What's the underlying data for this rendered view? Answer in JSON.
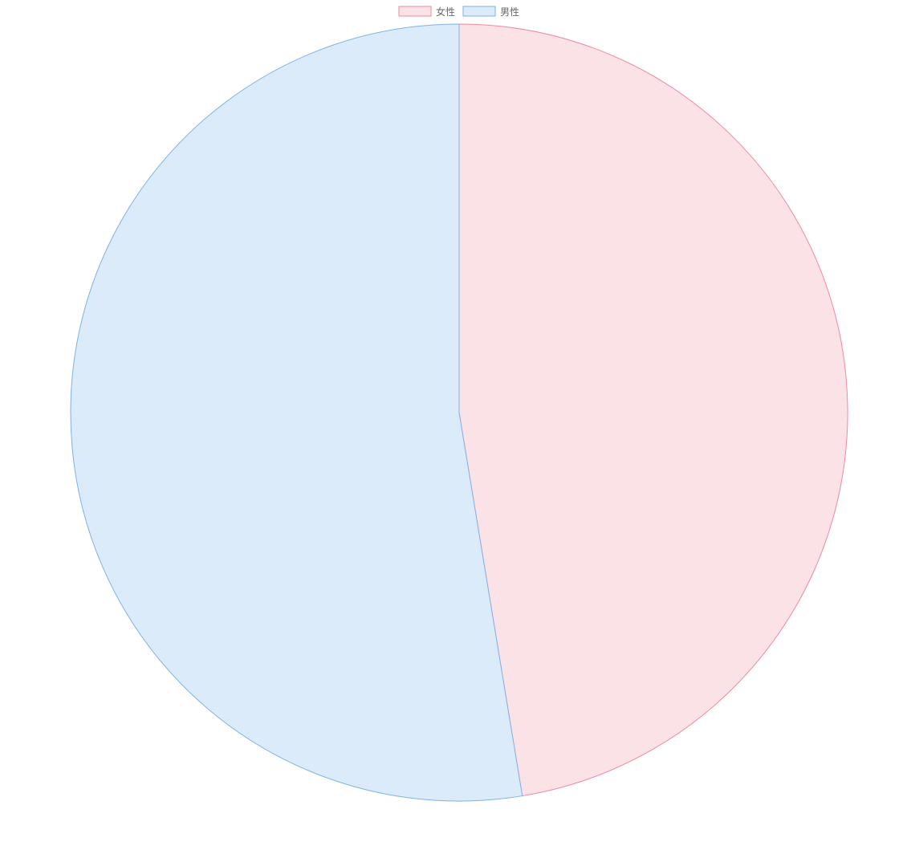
{
  "chart_data": {
    "type": "pie",
    "title": "",
    "legend_position": "top",
    "start_angle": "top",
    "direction": "clockwise",
    "slices": [
      {
        "label": "女性",
        "value": 47.4,
        "fill": "#fbe2e7",
        "stroke": "#f08aa0"
      },
      {
        "label": "男性",
        "value": 52.6,
        "fill": "#dbebf9",
        "stroke": "#7fb2e6"
      }
    ]
  }
}
